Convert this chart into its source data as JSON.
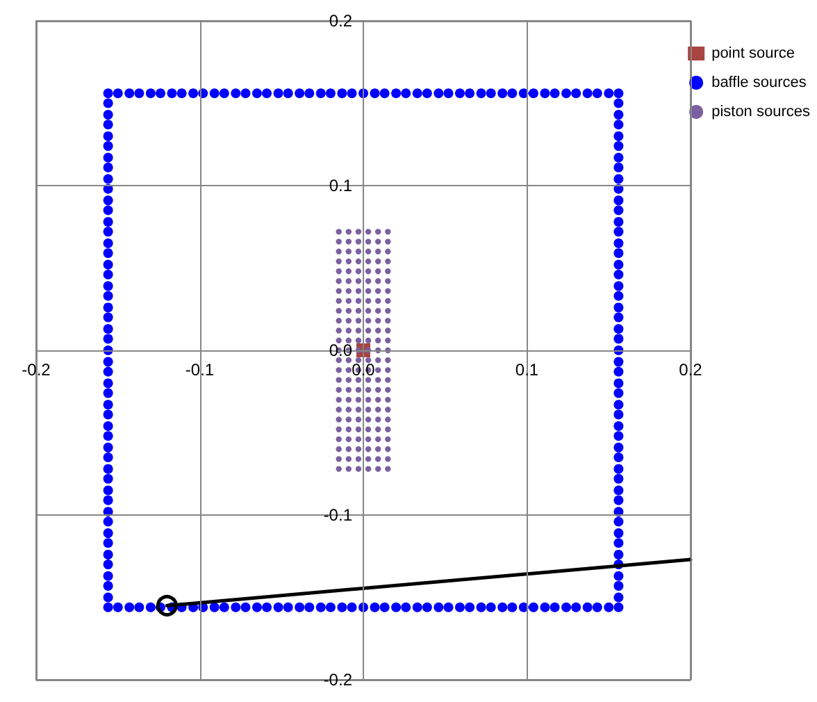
{
  "chart_data": {
    "type": "scatter",
    "xlim": [
      -0.2,
      0.2
    ],
    "ylim": [
      -0.2,
      0.2
    ],
    "xticks": [
      -0.2,
      -0.1,
      {
        "value": 0,
        "label": "0.0"
      },
      0.1,
      0.2
    ],
    "yticks": [
      -0.2,
      -0.1,
      {
        "value": 0,
        "label": "0.0"
      },
      0.1,
      0.2
    ],
    "grid": true,
    "legend": "top right",
    "series": [
      {
        "name": "point source",
        "marker": "square",
        "color": "#a94442",
        "x": [
          0
        ],
        "values": [
          0
        ]
      },
      {
        "name": "baffle sources",
        "marker": "circle",
        "color": "#0000ff",
        "x": [
          -0.156,
          -0.15,
          -0.143,
          -0.137,
          -0.13,
          -0.124,
          -0.117,
          -0.111,
          -0.104,
          -0.098,
          -0.091,
          -0.085,
          -0.078,
          -0.072,
          -0.065,
          -0.059,
          -0.052,
          -0.046,
          -0.039,
          -0.033,
          -0.026,
          -0.02,
          -0.013,
          -0.007,
          0,
          0.007,
          0.013,
          0.02,
          0.026,
          0.033,
          0.039,
          0.046,
          0.052,
          0.059,
          0.065,
          0.072,
          0.078,
          0.085,
          0.091,
          0.098,
          0.104,
          0.111,
          0.117,
          0.124,
          0.13,
          0.137,
          0.143,
          0.15,
          0.156,
          -0.156,
          -0.15,
          -0.143,
          -0.137,
          -0.13,
          -0.124,
          -0.117,
          -0.111,
          -0.104,
          -0.098,
          -0.091,
          -0.085,
          -0.078,
          -0.072,
          -0.065,
          -0.059,
          -0.052,
          -0.046,
          -0.039,
          -0.033,
          -0.026,
          -0.02,
          -0.013,
          -0.007,
          0,
          0.007,
          0.013,
          0.02,
          0.026,
          0.033,
          0.039,
          0.046,
          0.052,
          0.059,
          0.065,
          0.072,
          0.078,
          0.085,
          0.091,
          0.098,
          0.104,
          0.111,
          0.117,
          0.124,
          0.13,
          0.137,
          0.143,
          0.15,
          0.156,
          -0.156,
          -0.156,
          -0.156,
          -0.156,
          -0.156,
          -0.156,
          -0.156,
          -0.156,
          -0.156,
          -0.156,
          -0.156,
          -0.156,
          -0.156,
          -0.156,
          -0.156,
          -0.156,
          -0.156,
          -0.156,
          -0.156,
          -0.156,
          -0.156,
          -0.156,
          -0.156,
          -0.156,
          -0.156,
          -0.156,
          -0.156,
          -0.156,
          -0.156,
          -0.156,
          -0.156,
          -0.156,
          -0.156,
          -0.156,
          -0.156,
          -0.156,
          -0.156,
          -0.156,
          -0.156,
          -0.156,
          -0.156,
          -0.156,
          -0.156,
          -0.156,
          -0.156,
          -0.156,
          -0.156,
          0.156,
          0.156,
          0.156,
          0.156,
          0.156,
          0.156,
          0.156,
          0.156,
          0.156,
          0.156,
          0.156,
          0.156,
          0.156,
          0.156,
          0.156,
          0.156,
          0.156,
          0.156,
          0.156,
          0.156,
          0.156,
          0.156,
          0.156,
          0.156,
          0.156,
          0.156,
          0.156,
          0.156,
          0.156,
          0.156,
          0.156,
          0.156,
          0.156,
          0.156,
          0.156,
          0.156,
          0.156,
          0.156,
          0.156,
          0.156,
          0.156,
          0.156,
          0.156,
          0.156,
          0.156,
          0.156,
          0.156
        ],
        "values": [
          0.156,
          0.156,
          0.156,
          0.156,
          0.156,
          0.156,
          0.156,
          0.156,
          0.156,
          0.156,
          0.156,
          0.156,
          0.156,
          0.156,
          0.156,
          0.156,
          0.156,
          0.156,
          0.156,
          0.156,
          0.156,
          0.156,
          0.156,
          0.156,
          0.156,
          0.156,
          0.156,
          0.156,
          0.156,
          0.156,
          0.156,
          0.156,
          0.156,
          0.156,
          0.156,
          0.156,
          0.156,
          0.156,
          0.156,
          0.156,
          0.156,
          0.156,
          0.156,
          0.156,
          0.156,
          0.156,
          0.156,
          0.156,
          0.156,
          -0.156,
          -0.156,
          -0.156,
          -0.156,
          -0.156,
          -0.156,
          -0.156,
          -0.156,
          -0.156,
          -0.156,
          -0.156,
          -0.156,
          -0.156,
          -0.156,
          -0.156,
          -0.156,
          -0.156,
          -0.156,
          -0.156,
          -0.156,
          -0.156,
          -0.156,
          -0.156,
          -0.156,
          -0.156,
          -0.156,
          -0.156,
          -0.156,
          -0.156,
          -0.156,
          -0.156,
          -0.156,
          -0.156,
          -0.156,
          -0.156,
          -0.156,
          -0.156,
          -0.156,
          -0.156,
          -0.156,
          -0.156,
          -0.156,
          -0.156,
          -0.156,
          -0.156,
          -0.156,
          -0.156,
          -0.156,
          -0.156,
          -0.15,
          -0.143,
          -0.137,
          -0.13,
          -0.124,
          -0.117,
          -0.111,
          -0.104,
          -0.098,
          -0.091,
          -0.085,
          -0.078,
          -0.072,
          -0.065,
          -0.059,
          -0.052,
          -0.046,
          -0.039,
          -0.033,
          -0.026,
          -0.02,
          -0.013,
          -0.007,
          0,
          0.007,
          0.013,
          0.02,
          0.026,
          0.033,
          0.039,
          0.046,
          0.052,
          0.059,
          0.065,
          0.072,
          0.078,
          0.085,
          0.091,
          0.098,
          0.104,
          0.111,
          0.117,
          0.124,
          0.13,
          0.137,
          0.143,
          0.15,
          -0.15,
          -0.143,
          -0.137,
          -0.13,
          -0.124,
          -0.117,
          -0.111,
          -0.104,
          -0.098,
          -0.091,
          -0.085,
          -0.078,
          -0.072,
          -0.065,
          -0.059,
          -0.052,
          -0.046,
          -0.039,
          -0.033,
          -0.026,
          -0.02,
          -0.013,
          -0.007,
          0,
          0.007,
          0.013,
          0.02,
          0.026,
          0.033,
          0.039,
          0.046,
          0.052,
          0.059,
          0.065,
          0.072,
          0.078,
          0.085,
          0.091,
          0.098,
          0.104,
          0.111,
          0.117,
          0.124,
          0.13,
          0.137,
          0.143,
          0.15
        ]
      },
      {
        "name": "piston sources",
        "marker": "circle",
        "color": "#7a60a0",
        "x": [
          -0.015,
          -0.015,
          -0.015,
          -0.015,
          -0.015,
          -0.015,
          -0.015,
          -0.015,
          -0.015,
          -0.015,
          -0.015,
          -0.015,
          -0.015,
          -0.015,
          -0.015,
          -0.015,
          -0.015,
          -0.015,
          -0.015,
          -0.015,
          -0.015,
          -0.015,
          -0.015,
          -0.015,
          -0.015,
          -0.009,
          -0.009,
          -0.009,
          -0.009,
          -0.009,
          -0.009,
          -0.009,
          -0.009,
          -0.009,
          -0.009,
          -0.009,
          -0.009,
          -0.009,
          -0.009,
          -0.009,
          -0.009,
          -0.009,
          -0.009,
          -0.009,
          -0.009,
          -0.009,
          -0.009,
          -0.009,
          -0.009,
          -0.009,
          -0.003,
          -0.003,
          -0.003,
          -0.003,
          -0.003,
          -0.003,
          -0.003,
          -0.003,
          -0.003,
          -0.003,
          -0.003,
          -0.003,
          -0.003,
          -0.003,
          -0.003,
          -0.003,
          -0.003,
          -0.003,
          -0.003,
          -0.003,
          -0.003,
          -0.003,
          -0.003,
          -0.003,
          -0.003,
          0.003,
          0.003,
          0.003,
          0.003,
          0.003,
          0.003,
          0.003,
          0.003,
          0.003,
          0.003,
          0.003,
          0.003,
          0.003,
          0.003,
          0.003,
          0.003,
          0.003,
          0.003,
          0.003,
          0.003,
          0.003,
          0.003,
          0.003,
          0.003,
          0.003,
          0.009,
          0.009,
          0.009,
          0.009,
          0.009,
          0.009,
          0.009,
          0.009,
          0.009,
          0.009,
          0.009,
          0.009,
          0.009,
          0.009,
          0.009,
          0.009,
          0.009,
          0.009,
          0.009,
          0.009,
          0.009,
          0.009,
          0.009,
          0.009,
          0.009,
          0.015,
          0.015,
          0.015,
          0.015,
          0.015,
          0.015,
          0.015,
          0.015,
          0.015,
          0.015,
          0.015,
          0.015,
          0.015,
          0.015,
          0.015,
          0.015,
          0.015,
          0.015,
          0.015,
          0.015,
          0.015,
          0.015,
          0.015,
          0.015,
          0.015
        ],
        "values": [
          0.072,
          0.066,
          0.06,
          0.054,
          0.048,
          0.042,
          0.036,
          0.03,
          0.024,
          0.018,
          0.012,
          0.006,
          0,
          -0.006,
          -0.012,
          -0.018,
          -0.024,
          -0.03,
          -0.036,
          -0.042,
          -0.048,
          -0.054,
          -0.06,
          -0.066,
          -0.072,
          0.072,
          0.066,
          0.06,
          0.054,
          0.048,
          0.042,
          0.036,
          0.03,
          0.024,
          0.018,
          0.012,
          0.006,
          0,
          -0.006,
          -0.012,
          -0.018,
          -0.024,
          -0.03,
          -0.036,
          -0.042,
          -0.048,
          -0.054,
          -0.06,
          -0.066,
          -0.072,
          0.072,
          0.066,
          0.06,
          0.054,
          0.048,
          0.042,
          0.036,
          0.03,
          0.024,
          0.018,
          0.012,
          0.006,
          0,
          -0.006,
          -0.012,
          -0.018,
          -0.024,
          -0.03,
          -0.036,
          -0.042,
          -0.048,
          -0.054,
          -0.06,
          -0.066,
          -0.072,
          0.072,
          0.066,
          0.06,
          0.054,
          0.048,
          0.042,
          0.036,
          0.03,
          0.024,
          0.018,
          0.012,
          0.006,
          0,
          -0.006,
          -0.012,
          -0.018,
          -0.024,
          -0.03,
          -0.036,
          -0.042,
          -0.048,
          -0.054,
          -0.06,
          -0.066,
          -0.072,
          0.072,
          0.066,
          0.06,
          0.054,
          0.048,
          0.042,
          0.036,
          0.03,
          0.024,
          0.018,
          0.012,
          0.006,
          0,
          -0.006,
          -0.012,
          -0.018,
          -0.024,
          -0.03,
          -0.036,
          -0.042,
          -0.048,
          -0.054,
          -0.06,
          -0.066,
          -0.072,
          0.072,
          0.066,
          0.06,
          0.054,
          0.048,
          0.042,
          0.036,
          0.03,
          0.024,
          0.018,
          0.012,
          0.006,
          0,
          -0.006,
          -0.012,
          -0.018,
          -0.024,
          -0.03,
          -0.036,
          -0.042,
          -0.048,
          -0.054,
          -0.06,
          -0.066,
          -0.072
        ]
      },
      {
        "type": "line",
        "marker": "none",
        "line_style": "solid",
        "color": "#000000",
        "x": [
          -0.12,
          0.2
        ],
        "values": [
          -0.155,
          -0.127
        ]
      },
      {
        "marker": "circle",
        "color": "#000000",
        "x": [
          -0.12
        ],
        "values": [
          -0.155
        ]
      }
    ]
  }
}
